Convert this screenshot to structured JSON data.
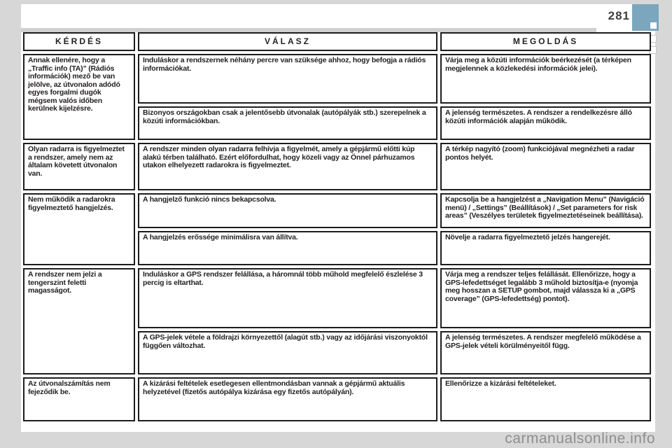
{
  "page": {
    "number": "281",
    "watermark": "carmanualsonline.info"
  },
  "colors": {
    "chapter_tab_blue": "#7ba6bd",
    "margin_gray": "#d7d7d7",
    "table_border": "#1d1d1d",
    "text": "#231f20",
    "watermark_gray": "#8e8e8e"
  },
  "table": {
    "headers": [
      "KÉRDÉS",
      "VÁLASZ",
      "MEGOLDÁS"
    ],
    "rows": [
      {
        "question": "Annak ellenére, hogy a „Traffic info (TA)” (Rádiós információk) mező be van jelölve, az útvonalon adódó egyes forgalmi dugók mégsem valós időben kerülnek kijelzésre.",
        "answers": [
          {
            "answer": "Induláskor a rendszernek néhány percre van szüksége ahhoz, hogy befogja a rádiós információkat.",
            "solution": "Várja meg a közúti információk beérkezését (a térképen megjelennek a közlekedési információk jelei)."
          },
          {
            "answer": "Bizonyos országokban csak a jelentősebb útvonalak (autópályák stb.) szerepelnek a közúti információkban.",
            "solution": "A jelenség természetes. A rendszer a rendelkezésre álló közúti információk alapján működik."
          }
        ]
      },
      {
        "question": "Olyan radarra is figyelmeztet a rendszer, amely nem az általam követett útvonalon van.",
        "answers": [
          {
            "answer": "A rendszer minden olyan radarra felhívja a figyelmét, amely a gépjármű előtti kúp alakú térben található. Ezért előfordulhat, hogy közeli vagy az Önnel párhuzamos utakon elhelyezett radarokra is figyelmeztet.",
            "solution": "A térkép nagyító (zoom) funkciójával megnézheti a radar pontos helyét."
          }
        ]
      },
      {
        "question": "Nem működik a radarokra figyelmeztető hangjelzés.",
        "answers": [
          {
            "answer": "A hangjelző funkció nincs bekapcsolva.",
            "solution": "Kapcsolja be a hangjelzést a „Navigation Menu” (Navigáció menü) / „Settings” (Beállítások) / „Set parameters for risk areas” (Veszélyes területek figyelmeztetéseinek beállítása)."
          },
          {
            "answer": "A hangjelzés erőssége minimálisra van állítva.",
            "solution": "Növelje a radarra figyelmeztető jelzés hangerejét."
          }
        ]
      },
      {
        "question": "A rendszer nem jelzi a tengerszint feletti magasságot.",
        "answers": [
          {
            "answer": "Induláskor a GPS rendszer felállása, a háromnál több műhold megfelelő észlelése 3 percig is eltarthat.",
            "solution": "Várja meg a rendszer teljes felállását. Ellenőrizze, hogy a GPS-lefedettséget legalább 3 műhold biztosítja-e (nyomja meg hosszan a SETUP gombot, majd válassza ki a „GPS coverage” (GPS-lefedettség) pontot)."
          },
          {
            "answer": "A GPS-jelek vétele a földrajzi környezettől (alagút stb.) vagy az időjárási viszonyoktól függően változhat.",
            "solution": "A jelenség természetes. A rendszer megfelelő működése a GPS-jelek vételi körülményeitől függ."
          }
        ]
      },
      {
        "question": "Az útvonalszámítás nem fejeződik be.",
        "answers": [
          {
            "answer": "A kizárási feltételek esetlegesen ellentmondásban vannak a gépjármű aktuális helyzetével (fizetős autópálya kizárása egy fizetős autópályán).",
            "solution": "Ellenőrizze a kizárási feltételeket."
          }
        ]
      }
    ]
  }
}
